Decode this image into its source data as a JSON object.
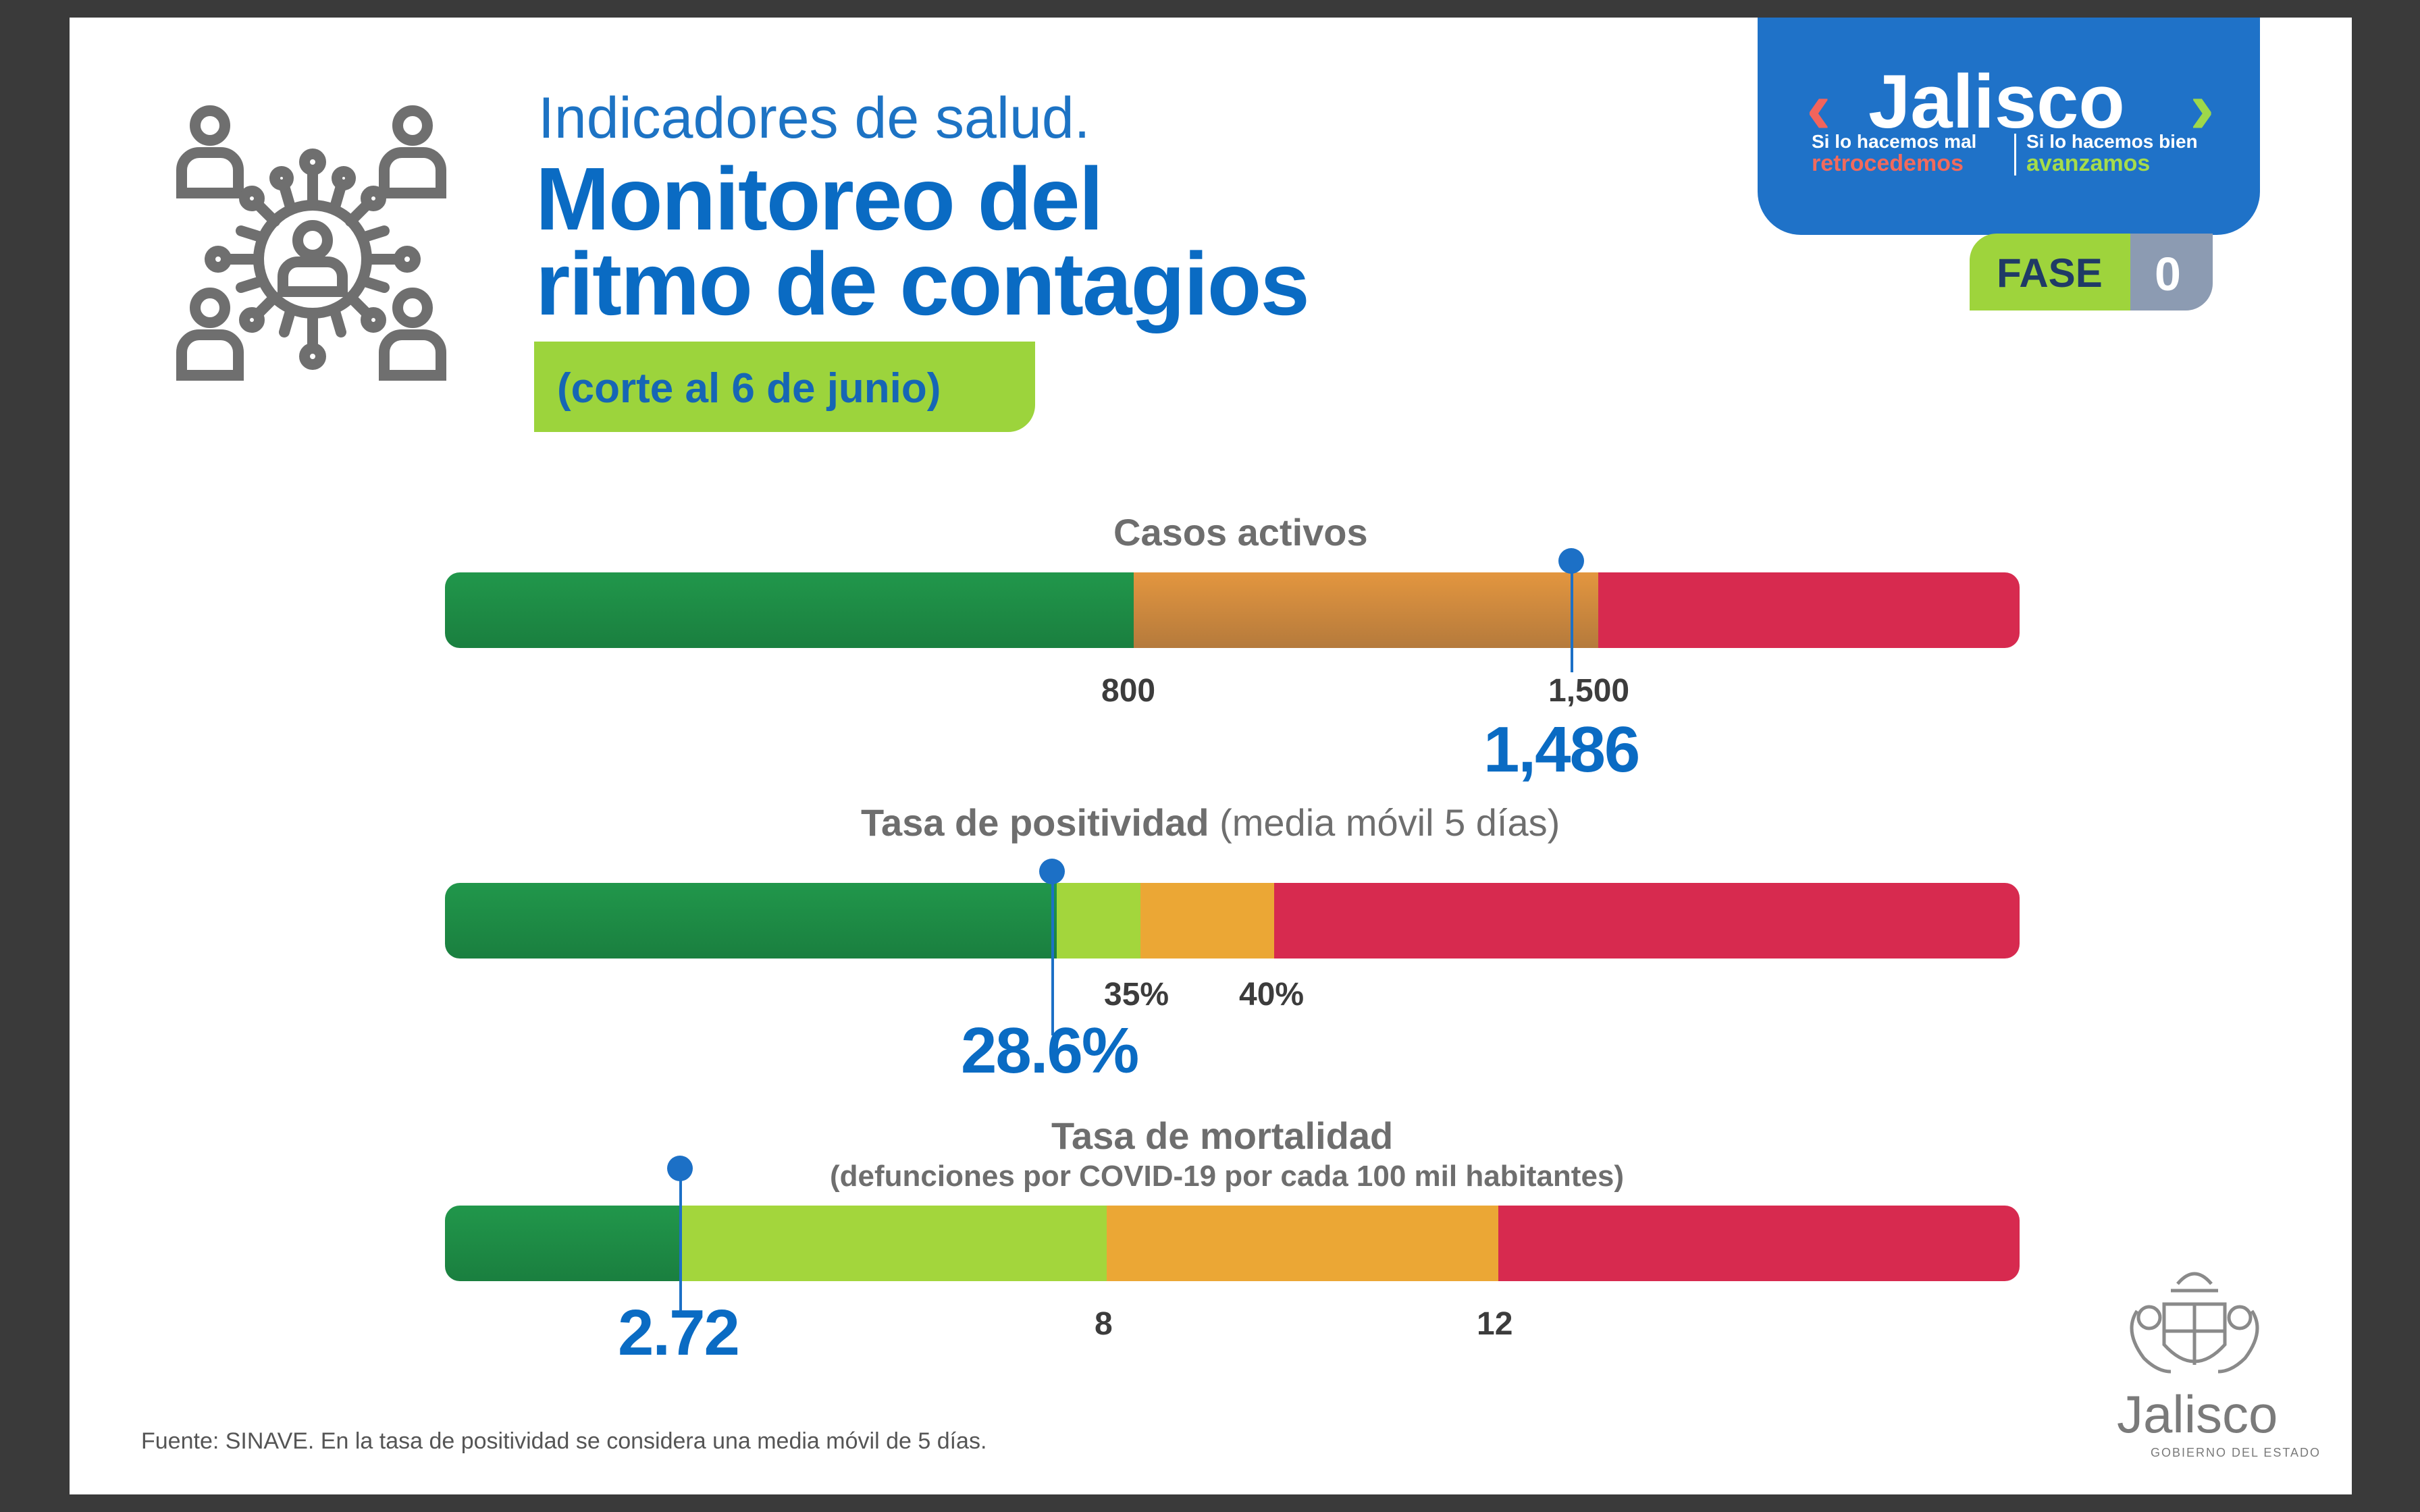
{
  "header": {
    "subtitle": "Indicadores de salud.",
    "title_line1": "Monitoreo del",
    "title_line2": "ritmo de contagios",
    "date_badge": "(corte al 6 de junio)"
  },
  "brand": {
    "name": "Jalisco",
    "tagline_left_1": "Si lo hacemos mal",
    "tagline_left_2": "retrocedemos",
    "tagline_right_1": "Si lo hacemos bien",
    "tagline_right_2": "avanzamos",
    "color": "#1f72c8"
  },
  "phase": {
    "label": "FASE",
    "value": "0"
  },
  "indicators": {
    "active_cases": {
      "title": "Casos activos",
      "thresholds": [
        "800",
        "1,500"
      ],
      "value_label": "1,486",
      "value": 1486
    },
    "positivity": {
      "title": "Tasa de positividad",
      "title_note": "(media móvil 5 días)",
      "thresholds": [
        "35%",
        "40%"
      ],
      "value_label": "28.6%",
      "value": 28.6
    },
    "mortality": {
      "title": "Tasa de mortalidad",
      "subtitle": "(defunciones por COVID-19 por cada 100 mil habitantes)",
      "thresholds": [
        "8",
        "12"
      ],
      "value_label": "2.72",
      "value": 2.72
    }
  },
  "colors": {
    "green_dark": "#1f9248",
    "green_light": "#a3d63c",
    "orange": "#eba735",
    "red": "#d72a4f",
    "marker_blue": "#1c70c6"
  },
  "footer": {
    "source": "Fuente: SINAVE. En la tasa de positividad se considera una media móvil de 5 días.",
    "gov_logo_name": "Jalisco",
    "gov_logo_sub": "GOBIERNO DEL ESTADO"
  }
}
